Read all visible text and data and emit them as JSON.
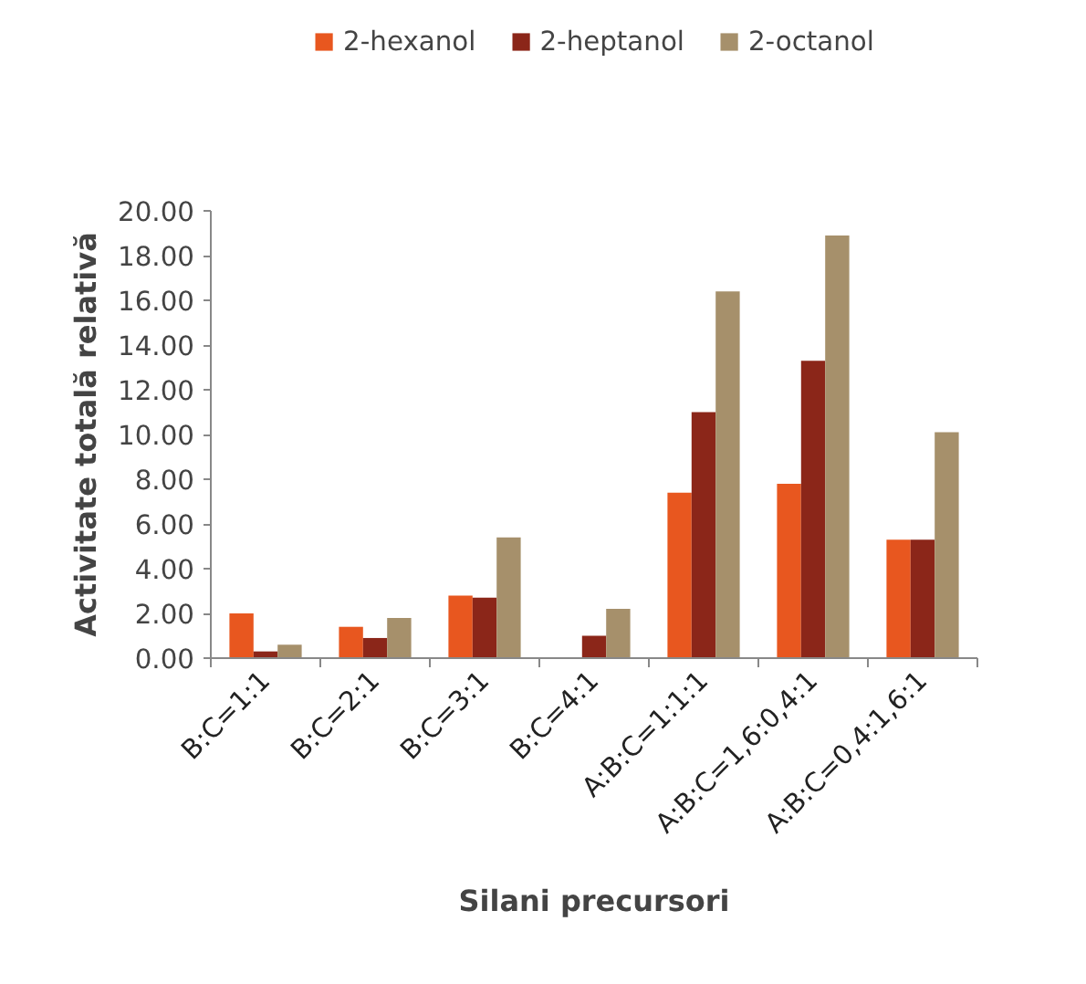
{
  "chart_data": {
    "type": "bar",
    "xlabel": "Silani precursori",
    "ylabel": "Activitate totală relativă",
    "categories": [
      "B:C=1:1",
      "B:C=2:1",
      "B:C=3:1",
      "B:C=4:1",
      "A:B:C=1:1:1",
      "A:B:C=1,6:0,4:1",
      "A:B:C=0,4:1,6:1"
    ],
    "series": [
      {
        "name": "2-hexanol",
        "color": "#e8571f",
        "values": [
          2.0,
          1.4,
          2.8,
          0,
          7.4,
          7.8,
          5.3
        ]
      },
      {
        "name": "2-heptanol",
        "color": "#8b2619",
        "values": [
          0.3,
          0.9,
          2.7,
          1.0,
          11.0,
          13.3,
          5.3
        ]
      },
      {
        "name": "2-octanol",
        "color": "#a6906b",
        "values": [
          0.6,
          1.8,
          5.4,
          2.2,
          16.4,
          18.9,
          10.1
        ]
      }
    ],
    "ylim": [
      0,
      20
    ],
    "yticks": [
      {
        "value": 0,
        "label": "0.00"
      },
      {
        "value": 2,
        "label": "2.00"
      },
      {
        "value": 4,
        "label": "4.00"
      },
      {
        "value": 6,
        "label": "6.00"
      },
      {
        "value": 8,
        "label": "8.00"
      },
      {
        "value": 10,
        "label": "10.00"
      },
      {
        "value": 12,
        "label": "12.00"
      },
      {
        "value": 14,
        "label": "14.00"
      },
      {
        "value": 16,
        "label": "16.00"
      },
      {
        "value": 18,
        "label": "18.00"
      },
      {
        "value": 20,
        "label": "20.00"
      }
    ],
    "grid": false,
    "legend": "top"
  }
}
